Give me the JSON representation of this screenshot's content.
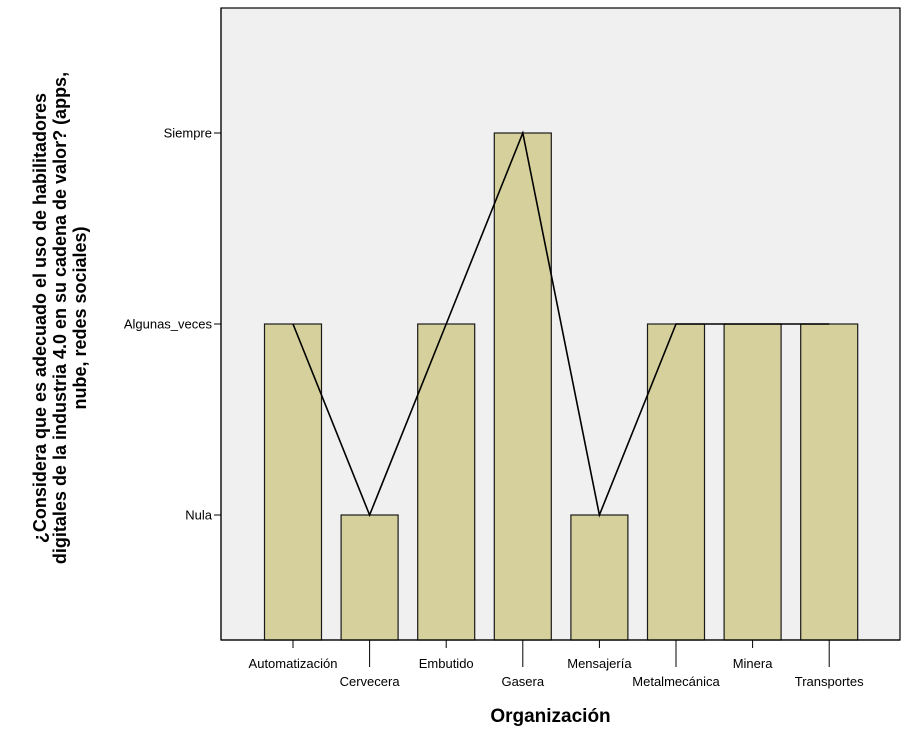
{
  "chart_data": {
    "type": "bar",
    "xlabel": "Organización",
    "ylabel_lines": [
      "¿Considera que es adecuado el uso de habilitadores",
      "digitales de la industria 4.0 en su cadena de valor? (apps,",
      "nube, redes sociales)"
    ],
    "categories": [
      "Automatización",
      "Cervecera",
      "Embutido",
      "Gasera",
      "Mensajería",
      "Metalmecánica",
      "Minera",
      "Transportes"
    ],
    "y_levels": [
      "Nula",
      "Algunas_veces",
      "Siempre"
    ],
    "values": [
      "Algunas_veces",
      "Nula",
      "Algunas_veces",
      "Siempre",
      "Nula",
      "Algunas_veces",
      "Algunas_veces",
      "Algunas_veces"
    ],
    "line_overlay": true,
    "grid": false,
    "colors": {
      "bar_fill": "#d6d09c",
      "bar_stroke": "#1a1a1a",
      "plot_background": "#f0f0f0",
      "line": "#000000"
    }
  }
}
